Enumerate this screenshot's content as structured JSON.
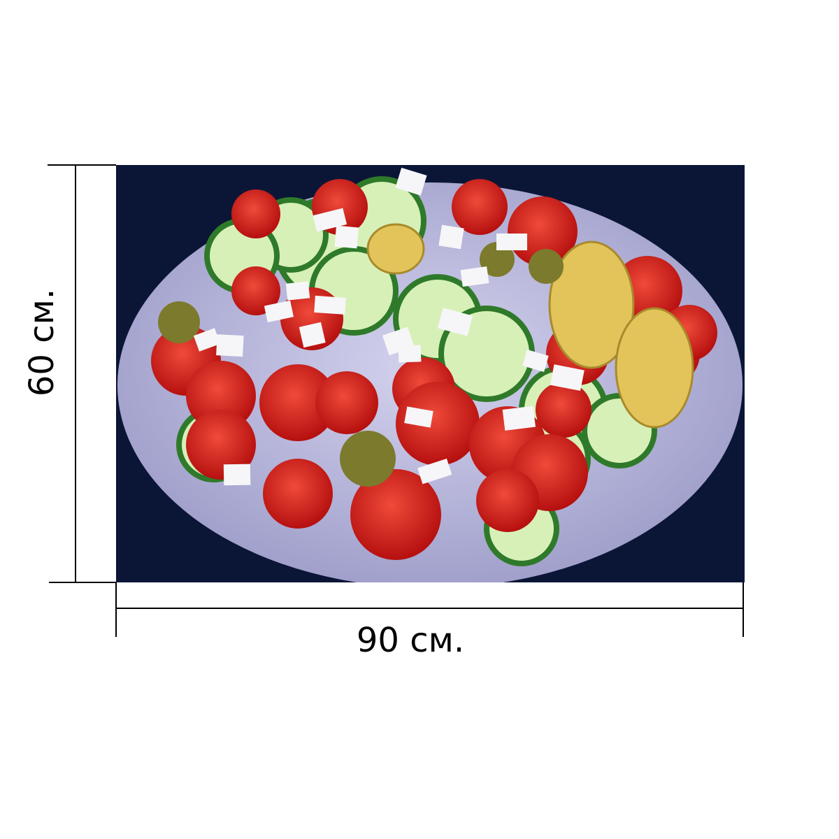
{
  "dimensions": {
    "height_label": "60 см.",
    "width_label": "90 см."
  },
  "photo": {
    "subject": "salad-plate",
    "colors": {
      "background": "#0b1636",
      "plate": "#b9b8dc",
      "tomato": "#d91f1f",
      "cucumber": "#7cc45a",
      "feta": "#f6f6f8",
      "artichoke": "#e3c45a",
      "olive": "#7c7a2c"
    }
  }
}
